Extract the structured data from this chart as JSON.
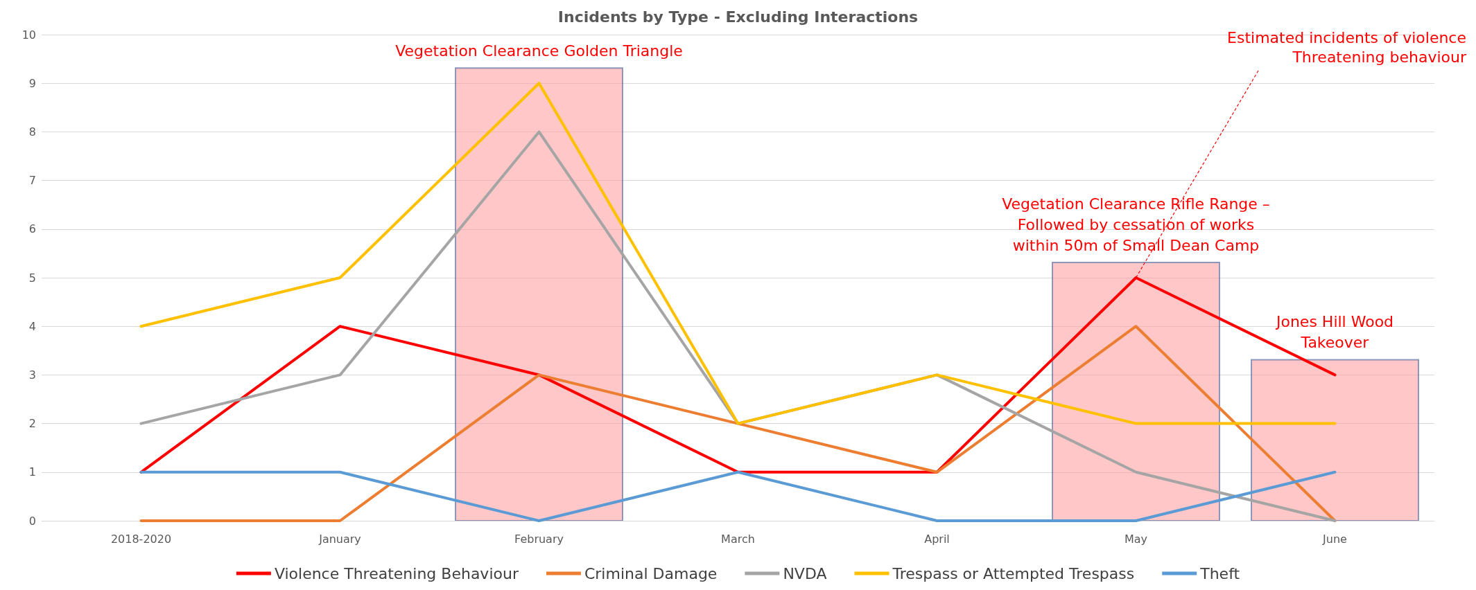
{
  "chart_data": {
    "type": "line",
    "title": "Incidents by Type - Excluding Interactions",
    "categories": [
      "2018-2020",
      "January",
      "February",
      "March",
      "April",
      "May",
      "June"
    ],
    "series": [
      {
        "name": "Violence Threatening Behaviour",
        "color": "#ff0000",
        "values": [
          1,
          4,
          3,
          1,
          1,
          5,
          3
        ]
      },
      {
        "name": "Criminal Damage",
        "color": "#ed7d31",
        "values": [
          0,
          0,
          3,
          2,
          1,
          4,
          0
        ]
      },
      {
        "name": "NVDA",
        "color": "#a5a5a5",
        "values": [
          2,
          3,
          8,
          2,
          3,
          1,
          0
        ]
      },
      {
        "name": "Trespass or Attempted Trespass",
        "color": "#ffc000",
        "values": [
          4,
          5,
          9,
          2,
          3,
          2,
          2
        ]
      },
      {
        "name": "Theft",
        "color": "#5b9bd5",
        "values": [
          1,
          1,
          0,
          1,
          0,
          0,
          1
        ]
      }
    ],
    "ylim": [
      0,
      10
    ],
    "yticks": [
      0,
      1,
      2,
      3,
      4,
      5,
      6,
      7,
      8,
      9,
      10
    ],
    "grid": "y",
    "legend": "bottom",
    "marker": "none",
    "line_style": "solid",
    "bands": [
      {
        "axis": "x",
        "from": "February",
        "to": "February",
        "label": "Vegetation Clearance Golden Triangle",
        "color": "#ff9999"
      },
      {
        "axis": "x",
        "from": "May",
        "to": "May",
        "label": "Vegetation Clearance Rifle Range –\nFollowed by cessation of works\nwithin 50m of Small Dean Camp",
        "color": "#ff9999"
      },
      {
        "axis": "x",
        "from": "June",
        "to": "June",
        "label": "Jones Hill Wood\nTakeover",
        "color": "#ff9999"
      }
    ],
    "annotations": [
      {
        "text": "Estimated incidents of violence\nThreatening behaviour",
        "x": "May",
        "y": 5
      }
    ]
  }
}
